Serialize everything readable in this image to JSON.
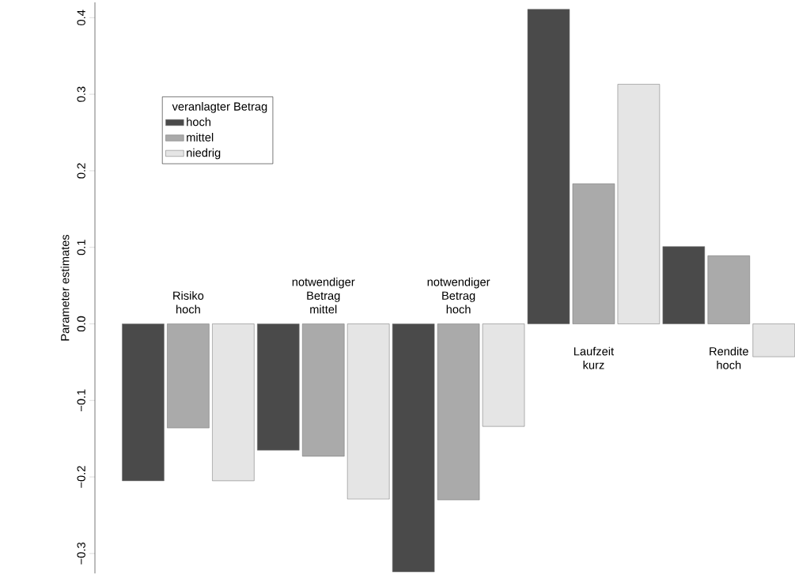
{
  "chart_data": {
    "type": "bar",
    "ylabel": "Parameter estimates",
    "legend_title": "veranlagter Betrag",
    "categories": [
      "Risiko hoch",
      "notwendiger Betrag mittel",
      "notwendiger Betrag hoch",
      "Laufzeit kurz",
      "Rendite hoch"
    ],
    "series": [
      {
        "name": "hoch",
        "color": "#4a4a4a",
        "values": [
          -0.205,
          -0.165,
          -0.324,
          0.411,
          0.101
        ]
      },
      {
        "name": "mittel",
        "color": "#aaaaaa",
        "values": [
          -0.136,
          -0.173,
          -0.23,
          0.183,
          0.089
        ]
      },
      {
        "name": "niedrig",
        "color": "#e5e5e5",
        "values": [
          -0.205,
          -0.229,
          -0.134,
          0.313,
          -0.043
        ]
      }
    ],
    "ylim": [
      -0.326,
      0.42
    ],
    "yticks": [
      {
        "value": -0.3,
        "label": "−0.3"
      },
      {
        "value": -0.2,
        "label": "−0.2"
      },
      {
        "value": -0.1,
        "label": "−0.1"
      },
      {
        "value": 0,
        "label": "0.0"
      },
      0.1,
      0.2,
      0.3,
      0.4
    ],
    "legend": "top left"
  }
}
